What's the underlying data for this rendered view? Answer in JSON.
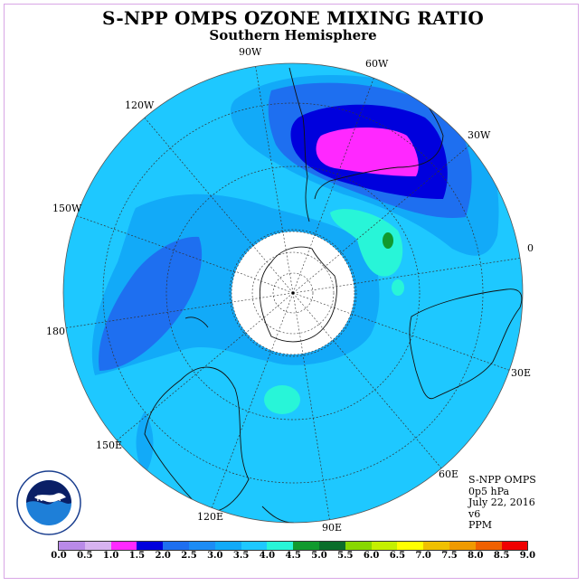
{
  "title": "S-NPP OMPS OZONE MIXING RATIO",
  "subtitle": "Southern Hemisphere",
  "longitude_labels": [
    "90W",
    "60W",
    "30W",
    "0",
    "30E",
    "60E",
    "90E",
    "120E",
    "150E",
    "180",
    "150W",
    "120W"
  ],
  "info": {
    "instrument": "S-NPP OMPS",
    "level": "0p5 hPa",
    "date": "July 22, 2016",
    "version": "v6",
    "units": "PPM"
  },
  "logo_text": "NOAA",
  "colorbar": {
    "ticks": [
      "0.0",
      "0.5",
      "1.0",
      "1.5",
      "2.0",
      "2.5",
      "3.0",
      "3.5",
      "4.0",
      "4.5",
      "5.0",
      "5.5",
      "6.0",
      "6.5",
      "7.0",
      "7.5",
      "8.0",
      "8.5",
      "9.0"
    ],
    "colors": [
      "#b98ae8",
      "#d7b3f0",
      "#ff28ff",
      "#0000dd",
      "#1e6ff0",
      "#1c8cf5",
      "#12aaf8",
      "#1ec8ff",
      "#28f5d8",
      "#119a2e",
      "#0a6e2a",
      "#88d800",
      "#c4f000",
      "#ffff00",
      "#f0c000",
      "#f09a00",
      "#f06000",
      "#f00000",
      "#7a4a30"
    ]
  }
}
